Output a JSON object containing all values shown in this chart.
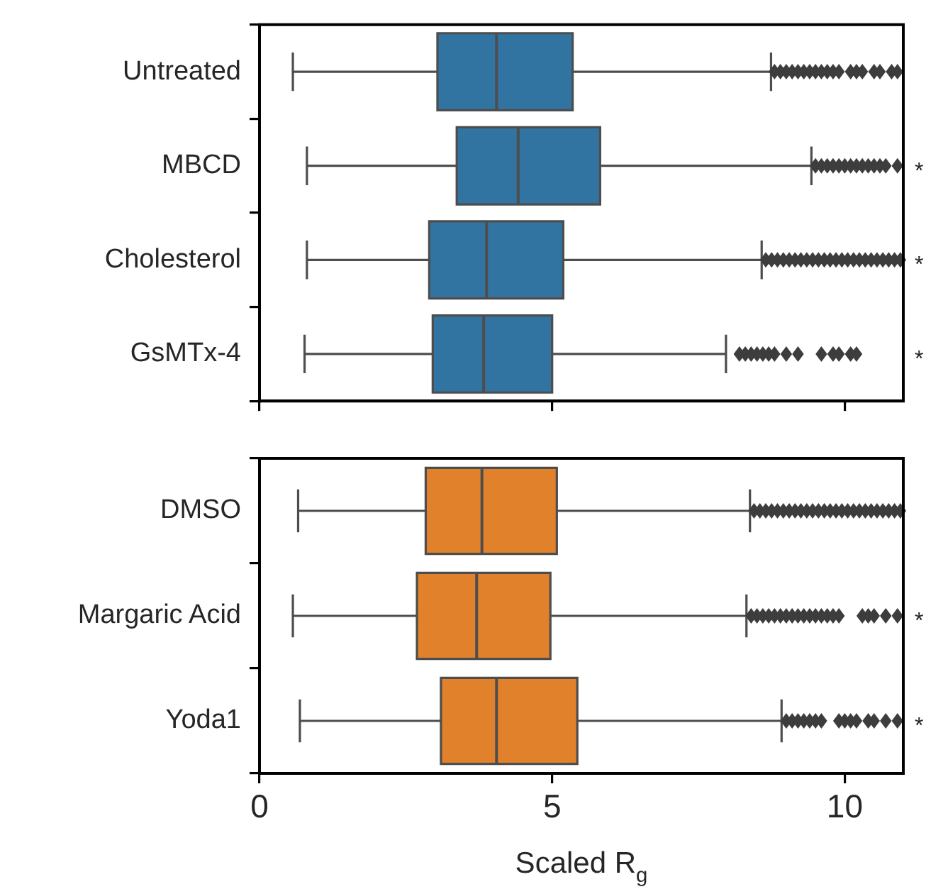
{
  "chart_data": [
    {
      "type": "box",
      "orientation": "horizontal",
      "categories": [
        "Untreated",
        "MBCD",
        "Cholesterol",
        "GsMTx-4"
      ],
      "xlim": [
        0,
        11
      ],
      "xticks": [
        {
          "value": 0,
          "label": null
        },
        {
          "value": 5,
          "label": null
        },
        {
          "value": 10,
          "label": null
        }
      ],
      "tick_labels": "y",
      "grid": false,
      "legend": false,
      "marker": "diamond",
      "series": [
        {
          "color": "#3274a1",
          "boxes": [
            {
              "low": 0.57,
              "q1": 3.04,
              "median": 4.05,
              "q3": 5.35,
              "high": 8.74,
              "outliers": [
                8.8,
                8.9,
                9.0,
                9.1,
                9.2,
                9.3,
                9.4,
                9.5,
                9.6,
                9.7,
                9.8,
                9.9,
                10.1,
                10.2,
                10.3,
                10.5,
                10.6,
                10.8,
                10.9
              ]
            },
            {
              "low": 0.81,
              "q1": 3.37,
              "median": 4.42,
              "q3": 5.82,
              "high": 9.43,
              "outliers": [
                9.5,
                9.6,
                9.7,
                9.8,
                9.9,
                10.0,
                10.1,
                10.2,
                10.3,
                10.4,
                10.5,
                10.6,
                10.7,
                10.9
              ]
            },
            {
              "low": 0.81,
              "q1": 2.9,
              "median": 3.88,
              "q3": 5.19,
              "high": 8.58,
              "outliers": [
                8.65,
                8.75,
                8.85,
                8.95,
                9.05,
                9.15,
                9.25,
                9.35,
                9.45,
                9.55,
                9.65,
                9.75,
                9.85,
                9.95,
                10.05,
                10.15,
                10.25,
                10.35,
                10.45,
                10.55,
                10.65,
                10.75,
                10.85,
                10.95
              ]
            },
            {
              "low": 0.77,
              "q1": 2.96,
              "median": 3.83,
              "q3": 5.0,
              "high": 7.97,
              "outliers": [
                8.2,
                8.3,
                8.4,
                8.5,
                8.6,
                8.7,
                8.8,
                9.0,
                9.2,
                9.6,
                9.8,
                9.9,
                10.1,
                10.2
              ]
            }
          ]
        }
      ],
      "annotations": [
        "*",
        "*",
        "*"
      ]
    },
    {
      "type": "box",
      "orientation": "horizontal",
      "categories": [
        "DMSO",
        "Margaric Acid",
        "Yoda1"
      ],
      "xlim": [
        0,
        11
      ],
      "xticks": [
        0,
        5,
        10
      ],
      "xlabel": "Scaled R$_{g}$",
      "grid": false,
      "legend": false,
      "marker": "diamond",
      "series": [
        {
          "color": "#e1812c",
          "boxes": [
            {
              "low": 0.66,
              "q1": 2.84,
              "median": 3.8,
              "q3": 5.08,
              "high": 8.38,
              "outliers": [
                8.45,
                8.55,
                8.65,
                8.75,
                8.85,
                8.95,
                9.05,
                9.15,
                9.25,
                9.35,
                9.45,
                9.55,
                9.65,
                9.75,
                9.85,
                9.95,
                10.05,
                10.15,
                10.25,
                10.35,
                10.45,
                10.55,
                10.65,
                10.75,
                10.85,
                10.95
              ]
            },
            {
              "low": 0.57,
              "q1": 2.69,
              "median": 3.71,
              "q3": 4.97,
              "high": 8.32,
              "outliers": [
                8.4,
                8.5,
                8.6,
                8.7,
                8.8,
                8.9,
                9.0,
                9.1,
                9.2,
                9.3,
                9.4,
                9.5,
                9.6,
                9.7,
                9.8,
                9.9,
                10.3,
                10.4,
                10.5,
                10.7,
                10.9
              ]
            },
            {
              "low": 0.69,
              "q1": 3.1,
              "median": 4.05,
              "q3": 5.43,
              "high": 8.92,
              "outliers": [
                9.0,
                9.1,
                9.2,
                9.3,
                9.4,
                9.5,
                9.6,
                9.9,
                10.0,
                10.1,
                10.2,
                10.4,
                10.5,
                10.7,
                10.9
              ]
            }
          ]
        }
      ],
      "annotations": [
        "*",
        "*"
      ]
    }
  ]
}
